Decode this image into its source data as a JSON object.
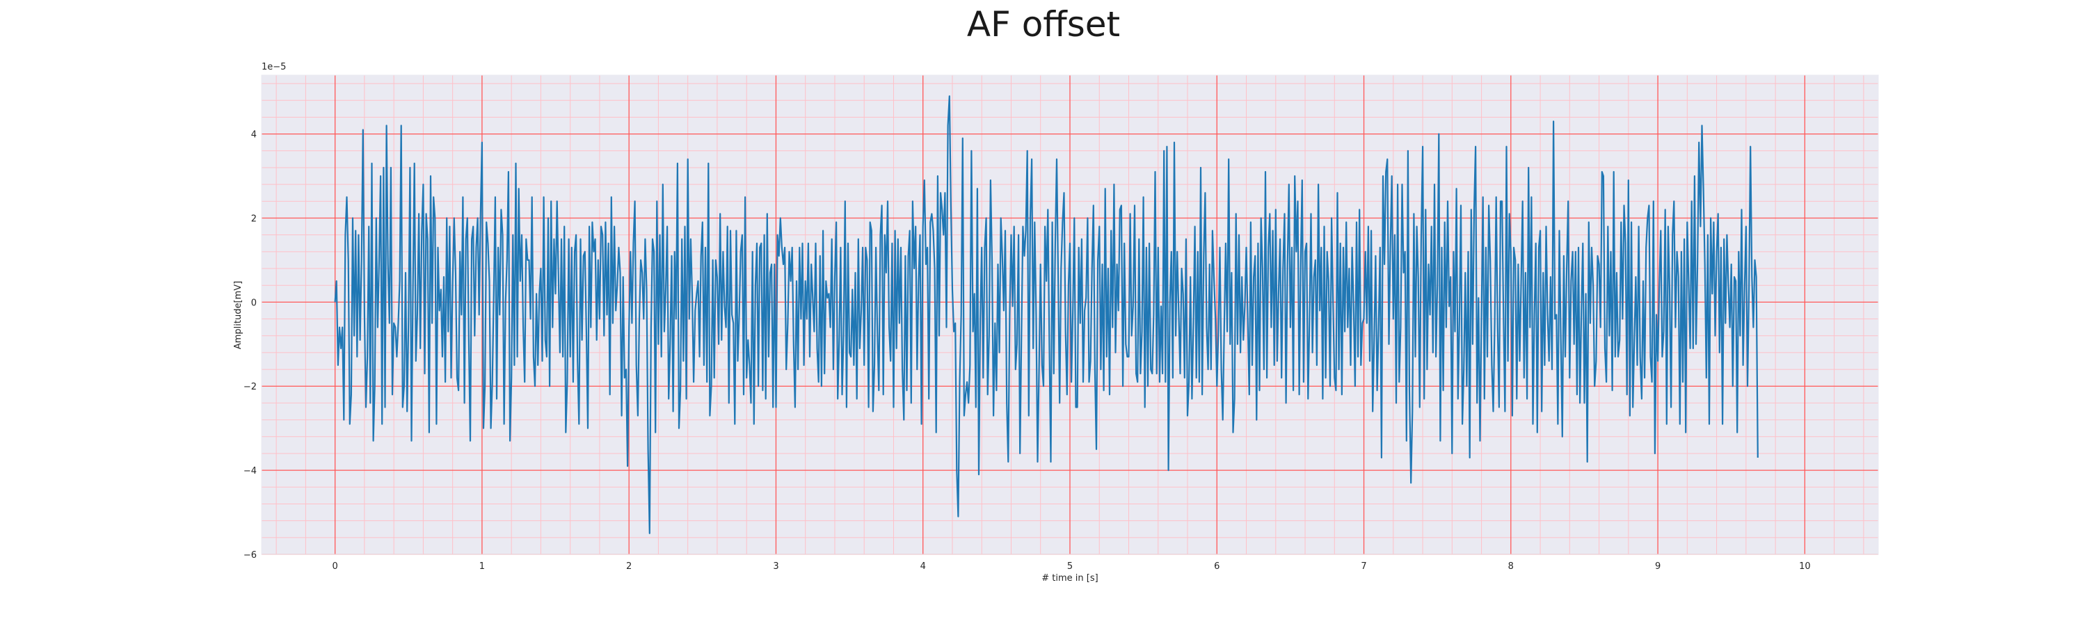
{
  "chart_data": {
    "type": "line",
    "title": "AF offset",
    "xlabel": "# time in [s]",
    "ylabel": "Amplitude[mV]",
    "y_offset_label": "1e−5",
    "xlim": [
      -0.5,
      10.5
    ],
    "ylim": [
      -6.0,
      5.4
    ],
    "x_ticks": [
      0,
      1,
      2,
      3,
      4,
      5,
      6,
      7,
      8,
      9,
      10
    ],
    "y_ticks": [
      -6,
      -4,
      -2,
      0,
      2,
      4
    ],
    "x_minor_step": 0.2,
    "y_minor_step": 0.4,
    "grid": true,
    "colors": {
      "line": "#1f77b4",
      "plot_background": "#eaeaf2",
      "major_grid": "#ff5a5a",
      "minor_grid": "#ffc0c8"
    },
    "series": [
      {
        "x0": 0,
        "dx": 0.01,
        "values": [
          0.0,
          0.5,
          -1.5,
          -0.6,
          -1.1,
          -0.6,
          -2.8,
          1.6,
          2.5,
          1.0,
          -2.9,
          -2.2,
          2.0,
          -0.8,
          1.7,
          -1.3,
          1.6,
          -0.9,
          1.0,
          4.1,
          -0.3,
          -2.5,
          -1.3,
          1.8,
          -2.4,
          3.3,
          -3.3,
          -2.0,
          2.0,
          -0.6,
          1.0,
          3.0,
          -2.9,
          3.2,
          -2.5,
          4.2,
          0.9,
          -0.5,
          3.2,
          -2.2,
          -0.5,
          -0.6,
          -1.3,
          -0.5,
          0.5,
          4.2,
          -2.5,
          -2.0,
          0.7,
          -2.6,
          -0.4,
          3.2,
          -3.3,
          0.3,
          3.3,
          -1.4,
          -0.3,
          2.1,
          -1.1,
          1.7,
          2.8,
          -1.7,
          2.1,
          1.5,
          -3.1,
          3.0,
          -0.5,
          2.5,
          2.0,
          -2.9,
          1.3,
          -0.2,
          0.3,
          -1.3,
          0.6,
          -1.9,
          2.0,
          -0.7,
          1.8,
          -1.8,
          0.5,
          2.0,
          0.7,
          -1.8,
          -2.1,
          1.2,
          -0.3,
          2.5,
          -2.4,
          1.5,
          2.0,
          -0.9,
          -3.3,
          1.5,
          1.8,
          -0.8,
          1.3,
          2.0,
          -0.3,
          2.1,
          3.8,
          -3.0,
          -2.0,
          1.9,
          1.4,
          0.5,
          -3.0,
          -1.9,
          0.2,
          2.5,
          -2.3,
          1.3,
          -0.3,
          2.2,
          1.6,
          -2.9,
          0.0,
          1.0,
          3.1,
          -3.3,
          -1.8,
          1.6,
          -1.5,
          3.3,
          -1.3,
          2.7,
          0.5,
          1.6,
          -0.6,
          -1.9,
          1.5,
          1.0,
          1.0,
          -0.4,
          2.5,
          -1.3,
          -2.0,
          0.2,
          -1.5,
          0.2,
          0.8,
          -1.4,
          2.5,
          -0.9,
          -1.3,
          2.0,
          -2.0,
          2.4,
          -0.6,
          1.5,
          0.2,
          2.4,
          0.6,
          -1.2,
          1.5,
          -1.3,
          1.8,
          -3.1,
          -1.9,
          1.5,
          -1.3,
          1.3,
          -1.9,
          1.2,
          1.6,
          -1.4,
          -2.9,
          1.5,
          -0.9,
          1.1,
          1.2,
          -0.7,
          -3.0,
          1.8,
          -0.6,
          1.9,
          1.2,
          1.5,
          -0.9,
          1.0,
          -0.4,
          1.8,
          1.6,
          -0.8,
          1.9,
          -0.3,
          1.4,
          -2.2,
          2.5,
          -0.5,
          1.8,
          -0.2,
          0.4,
          1.3,
          0.7,
          -2.7,
          0.6,
          -1.8,
          -1.6,
          -3.9,
          -0.6,
          1.2,
          -0.5,
          1.4,
          2.4,
          -1.5,
          -2.7,
          -0.4,
          1.0,
          0.7,
          -0.4,
          1.5,
          0.3,
          -3.5,
          -5.5,
          -0.6,
          1.5,
          1.2,
          -3.1,
          2.4,
          -1.0,
          1.6,
          -1.3,
          2.8,
          -0.7,
          0.3,
          1.8,
          -2.3,
          -1.0,
          1.1,
          -2.6,
          1.2,
          -0.4,
          3.3,
          -3.0,
          -2.1,
          1.5,
          -1.4,
          1.8,
          -2.3,
          3.4,
          -0.4,
          1.5,
          0.2,
          -1.9,
          -0.2,
          0.2,
          0.5,
          -1.3,
          1.1,
          1.9,
          -1.5,
          1.3,
          -1.9,
          3.3,
          -2.7,
          -2.0,
          1.0,
          -1.8,
          1.0,
          0.6,
          -1.0,
          2.1,
          -0.9,
          1.2,
          -0.1,
          -0.6,
          1.8,
          -2.4,
          1.7,
          -0.3,
          -0.5,
          -2.9,
          1.7,
          -1.4,
          -0.3,
          1.2,
          1.6,
          -2.2,
          2.5,
          -1.8,
          -0.9,
          -1.5,
          -2.4,
          1.2,
          -2.9,
          0.4,
          1.4,
          -2.0,
          1.3,
          1.4,
          -2.1,
          1.6,
          -2.3,
          2.1,
          -1.3,
          0.7,
          0.9,
          -2.5,
          0.9,
          -2.5,
          1.6,
          1.1,
          2.0,
          1.3,
          0.9,
          1.3,
          -1.6,
          -0.5,
          1.2,
          0.5,
          1.3,
          -1.0,
          -2.5,
          0.5,
          -1.6,
          1.3,
          -0.4,
          1.4,
          -1.5,
          0.5,
          -0.4,
          1.4,
          -1.3,
          0.9,
          0.1,
          -0.7,
          1.4,
          -1.1,
          -1.9,
          1.1,
          -2.0,
          1.7,
          -1.7,
          0.5,
          0.1,
          0.2,
          -0.6,
          1.5,
          -1.6,
          0.6,
          1.9,
          -2.3,
          -0.9,
          1.3,
          -2.2,
          -0.8,
          2.4,
          -2.5,
          1.4,
          -1.2,
          -1.3,
          0.3,
          -1.5,
          0.7,
          -2.3,
          1.5,
          -1.1,
          -0.2,
          1.3,
          -1.5,
          1.3,
          1.0,
          -2.5,
          1.9,
          1.7,
          -2.6,
          -1.5,
          1.3,
          -0.7,
          -2.1,
          1.6,
          2.3,
          -2.2,
          1.6,
          0.7,
          2.4,
          -0.6,
          -1.4,
          1.4,
          -2.5,
          1.7,
          -1.1,
          1.5,
          -0.5,
          1.3,
          -1.6,
          -2.8,
          1.1,
          -2.1,
          1.1,
          1.7,
          -2.4,
          2.4,
          0.8,
          1.8,
          -1.6,
          0.5,
          1.6,
          -2.9,
          1.8,
          2.9,
          0.9,
          1.3,
          -2.3,
          1.9,
          2.1,
          1.7,
          0.8,
          -3.1,
          3.0,
          -0.8,
          2.6,
          2.2,
          1.6,
          2.6,
          -0.6,
          4.2,
          4.9,
          2.3,
          0.3,
          -0.7,
          -0.5,
          -4.0,
          -5.1,
          -1.9,
          -0.3,
          3.9,
          -2.7,
          -2.2,
          -1.9,
          -2.4,
          -1.5,
          3.6,
          -0.7,
          0.2,
          -2.5,
          2.7,
          -4.1,
          -0.4,
          1.3,
          -1.8,
          1.3,
          2.0,
          -2.2,
          -0.8,
          2.9,
          1.0,
          -2.7,
          -0.5,
          -2.1,
          0.9,
          -1.2,
          2.0,
          1.1,
          -0.2,
          1.7,
          -2.4,
          -3.8,
          -0.3,
          1.6,
          -0.1,
          1.8,
          -1.6,
          -1.0,
          1.6,
          -3.6,
          -0.8,
          1.8,
          1.1,
          1.7,
          3.6,
          -2.7,
          2.0,
          3.4,
          -1.1,
          1.9,
          -0.3,
          -3.8,
          -1.6,
          0.9,
          -1.5,
          -2.0,
          1.8,
          0.5,
          2.2,
          -1.0,
          -3.8,
          1.9,
          -1.7,
          1.4,
          3.4,
          0.6,
          -2.4,
          0.8,
          1.9,
          2.6,
          -0.7,
          -2.2,
          0.4,
          1.4,
          -1.9,
          -0.2,
          2.0,
          -2.5,
          -2.5,
          1.3,
          -0.5,
          1.5,
          -1.9,
          -0.2,
          0.1,
          2.0,
          -1.9,
          -1.4,
          0.8,
          2.3,
          -1.6,
          -3.5,
          1.0,
          1.8,
          -1.6,
          0.9,
          -2.1,
          2.7,
          -1.3,
          0.8,
          -2.2,
          1.7,
          -0.6,
          2.8,
          -1.2,
          0.9,
          -0.2,
          2.2,
          2.3,
          -2.0,
          1.4,
          -1.0,
          -1.3,
          -1.3,
          2.1,
          -0.8,
          -0.1,
          2.3,
          -1.7,
          -1.9,
          1.5,
          -1.7,
          -0.7,
          2.5,
          -2.5,
          1.3,
          -2.0,
          1.4,
          -1.6,
          -1.7,
          -0.3,
          3.1,
          -1.7,
          1.3,
          -1.9,
          -0.1,
          -1.7,
          3.6,
          -1.9,
          3.7,
          -4.0,
          0.0,
          1.2,
          -1.8,
          3.8,
          -0.8,
          1.2,
          -0.2,
          -1.7,
          0.8,
          0.2,
          -1.8,
          1.5,
          -2.7,
          -1.9,
          0.6,
          -2.3,
          -0.5,
          1.8,
          -1.8,
          1.2,
          -1.9,
          3.2,
          -2.2,
          1.1,
          2.6,
          -0.6,
          -1.6,
          0.9,
          -1.6,
          1.7,
          0.6,
          -0.4,
          -2.0,
          -0.7,
          1.3,
          -1.6,
          -2.8,
          -0.6,
          1.4,
          -0.7,
          3.4,
          -1.0,
          0.7,
          -3.1,
          -2.3,
          2.1,
          -1.0,
          1.6,
          -1.2,
          0.6,
          -0.9,
          -0.1,
          1.3,
          -0.4,
          -2.2,
          1.9,
          -1.5,
          0.6,
          1.1,
          -2.8,
          1.4,
          -2.1,
          2.0,
          0.8,
          -1.6,
          3.1,
          -1.8,
          1.3,
          2.1,
          -0.6,
          1.7,
          -1.5,
          2.2,
          -1.4,
          0.3,
          1.5,
          -1.8,
          0.8,
          2.1,
          -2.4,
          0.9,
          2.8,
          -0.6,
          1.3,
          -2.1,
          3.0,
          1.2,
          2.4,
          -2.2,
          0.9,
          2.9,
          -1.9,
          1.2,
          1.4,
          -2.3,
          -0.4,
          2.1,
          -1.2,
          0.6,
          1.0,
          -1.5,
          2.8,
          -0.2,
          1.3,
          -2.3,
          1.8,
          -1.8,
          1.2,
          0.5,
          -2.0,
          2.0,
          0.0,
          -1.8,
          -2.1,
          2.6,
          -1.6,
          1.4,
          -2.2,
          1.3,
          -0.7,
          1.9,
          -0.6,
          0.8,
          -1.5,
          1.3,
          -0.1,
          -2.0,
          1.9,
          -1.3,
          2.2,
          -1.5,
          -0.5,
          -0.4,
          1.2,
          -0.5,
          1.8,
          -1.4,
          1.7,
          -2.6,
          -0.9,
          1.1,
          -2.1,
          -0.6,
          1.3,
          -3.7,
          3.0,
          0.9,
          3.1,
          3.4,
          -1.0,
          1.3,
          3.0,
          -0.4,
          1.6,
          -2.4,
          2.8,
          -1.9,
          -0.6,
          2.8,
          0.7,
          1.2,
          -3.3,
          3.6,
          -2.1,
          -4.3,
          -2.6,
          2.1,
          -1.3,
          1.8,
          0.6,
          -2.5,
          1.5,
          3.7,
          -2.3,
          2.2,
          -1.6,
          0.9,
          -0.3,
          1.8,
          -1.2,
          2.8,
          -1.3,
          0.4,
          4.0,
          -3.3,
          1.3,
          -2.1,
          1.9,
          -0.6,
          2.4,
          -0.1,
          0.6,
          -3.6,
          1.2,
          -0.7,
          2.7,
          -2.3,
          -0.4,
          2.3,
          -2.9,
          -1.6,
          0.7,
          -2.0,
          1.2,
          -3.7,
          2.2,
          -1.0,
          2.2,
          3.7,
          -2.4,
          0.1,
          -3.3,
          -0.3,
          2.5,
          -2.3,
          1.3,
          -1.3,
          2.3,
          1.0,
          -1.5,
          -2.6,
          -0.5,
          2.5,
          -0.6,
          -2.5,
          2.4,
          2.4,
          -0.4,
          -2.6,
          3.7,
          -1.4,
          2.1,
          1.2,
          -2.7,
          1.3,
          1.0,
          -2.3,
          0.9,
          -1.4,
          0.5,
          2.4,
          -1.8,
          0.7,
          -2.3,
          3.2,
          -0.6,
          2.5,
          -2.9,
          -0.3,
          1.4,
          -3.1,
          1.3,
          1.7,
          -2.6,
          0.7,
          -1.5,
          1.8,
          -0.3,
          -1.4,
          0.6,
          -1.6,
          4.3,
          -0.4,
          -0.3,
          -2.9,
          1.7,
          -0.9,
          -3.2,
          1.1,
          -1.3,
          0.8,
          2.4,
          -1.8,
          0.5,
          1.2,
          -1.0,
          1.2,
          -2.2,
          1.3,
          -2.4,
          -0.2,
          1.4,
          -2.4,
          0.2,
          -3.8,
          1.9,
          -0.5,
          1.3,
          0.4,
          -2.0,
          -1.4,
          1.1,
          0.9,
          -0.6,
          3.1,
          3.0,
          -1.1,
          -1.9,
          1.8,
          -0.8,
          1.2,
          -2.1,
          3.1,
          -1.3,
          0.7,
          -1.3,
          -0.9,
          1.9,
          -0.4,
          2.3,
          1.4,
          -2.2,
          2.9,
          -2.7,
          1.9,
          -2.5,
          -0.9,
          0.6,
          -1.5,
          1.8,
          -1.3,
          -2.3,
          0.5,
          -1.8,
          1.3,
          2.0,
          2.3,
          -1.3,
          -1.9,
          2.4,
          -3.6,
          -0.3,
          -1.4,
          0.4,
          1.7,
          -1.3,
          -0.7,
          2.2,
          -2.9,
          1.8,
          0.3,
          -2.5,
          1.6,
          2.4,
          -0.6,
          1.2,
          0.6,
          -2.9,
          1.2,
          -1.9,
          1.5,
          -3.1,
          1.9,
          0.4,
          -1.1,
          2.4,
          -1.1,
          3.0,
          -1.0,
          0.9,
          3.8,
          1.8,
          4.2,
          2.7,
          0.9,
          -1.8,
          1.6,
          -2.9,
          2.0,
          0.2,
          1.9,
          -0.8,
          1.2,
          2.1,
          -1.2,
          1.3,
          -2.9,
          1.5,
          -0.5,
          1.6,
          0.4,
          -0.6,
          0.9,
          -2.0,
          0.6,
          0.5,
          -3.1,
          1.2,
          -0.8,
          2.2,
          -1.5,
          0.3,
          1.8,
          -2.0,
          0.3,
          3.7,
          0.6,
          -0.6,
          1.0,
          0.6,
          -3.7
        ]
      }
    ]
  }
}
